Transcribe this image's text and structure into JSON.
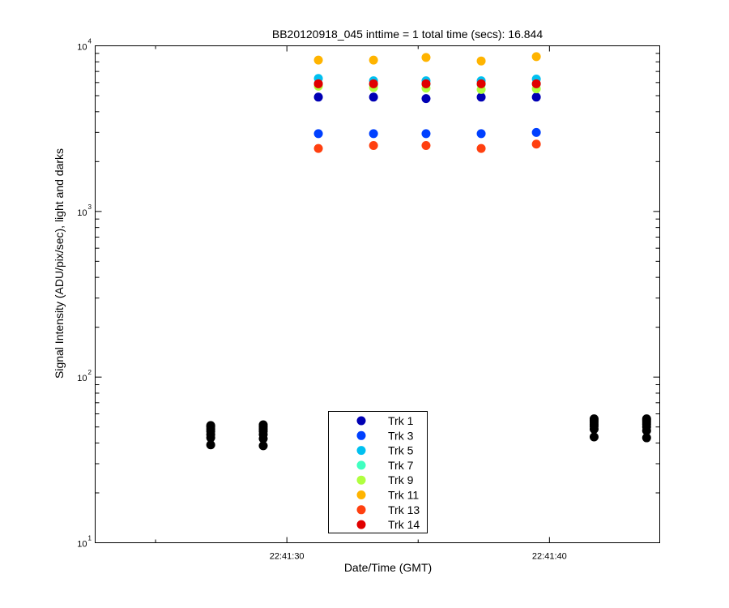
{
  "chart_data": {
    "type": "scatter",
    "title": "BB20120918_045 inttime = 1 total time (secs): 16.844",
    "xlabel": "Date/Time (GMT)",
    "ylabel": "Signal Intensity (ADU/pix/sec), light and darks",
    "yscale": "log",
    "ylim": [
      10,
      10000
    ],
    "xlim_seconds": [
      22.7,
      44.2
    ],
    "x_ticks": [
      {
        "seconds": 30,
        "label": "22:41:30"
      },
      {
        "seconds": 40,
        "label": "22:41:40"
      }
    ],
    "y_ticks": [
      {
        "value": 10,
        "base": "10",
        "exp": "1"
      },
      {
        "value": 100,
        "base": "10",
        "exp": "2"
      },
      {
        "value": 1000,
        "base": "10",
        "exp": "3"
      },
      {
        "value": 10000,
        "base": "10",
        "exp": "4"
      }
    ],
    "x_seconds_light": [
      31.2,
      33.3,
      35.3,
      37.4,
      39.5
    ],
    "series": [
      {
        "name": "Trk 1",
        "color": "#0000b4",
        "values": [
          4900,
          4900,
          4800,
          4900,
          4900
        ]
      },
      {
        "name": "Trk 3",
        "color": "#0040ff",
        "values": [
          2950,
          2950,
          2950,
          2950,
          3000
        ]
      },
      {
        "name": "Trk 5",
        "color": "#00c0f0",
        "values": [
          6350,
          6150,
          6150,
          6150,
          6300
        ]
      },
      {
        "name": "Trk 7",
        "color": "#40ffc0",
        "values": [
          5900,
          5850,
          5850,
          5850,
          5900
        ]
      },
      {
        "name": "Trk 9",
        "color": "#b0ff40",
        "values": [
          5700,
          5600,
          5550,
          5450,
          5500
        ]
      },
      {
        "name": "Trk 11",
        "color": "#ffb400",
        "values": [
          8200,
          8200,
          8500,
          8100,
          8600
        ]
      },
      {
        "name": "Trk 13",
        "color": "#ff4010",
        "values": [
          2400,
          2500,
          2500,
          2400,
          2550
        ]
      },
      {
        "name": "Trk 14",
        "color": "#e00000",
        "values": [
          5900,
          5900,
          5900,
          5900,
          5900
        ]
      }
    ],
    "darks": {
      "name": "darks",
      "color": "#000000",
      "x_seconds": [
        27.1,
        29.1,
        41.7,
        43.7
      ],
      "values": [
        [
          39,
          43,
          45,
          47,
          48.5,
          50,
          51
        ],
        [
          38.5,
          42.5,
          45,
          47,
          48.5,
          50,
          51.5
        ],
        [
          43.5,
          48.5,
          50.5,
          52,
          53.5,
          55,
          56
        ],
        [
          43,
          47.5,
          50,
          52,
          53.5,
          55,
          56
        ]
      ]
    },
    "legend_position": "bottom-center",
    "grid": false
  }
}
